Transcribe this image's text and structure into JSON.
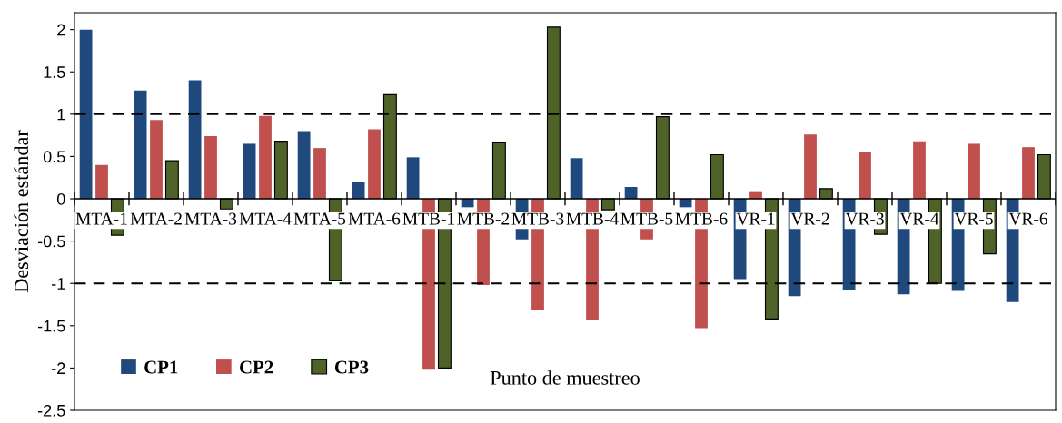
{
  "chart_data": {
    "type": "bar",
    "xlabel": "Punto de muestreo",
    "ylabel": "Desviación estándar",
    "categories": [
      "MTA-1",
      "MTA-2",
      "MTA-3",
      "MTA-4",
      "MTA-5",
      "MTA-6",
      "MTB-1",
      "MTB-2",
      "MTB-3",
      "MTB-4",
      "MTB-5",
      "MTB-6",
      "VR-1",
      "VR-2",
      "VR-3",
      "VR-4",
      "VR-5",
      "VR-6"
    ],
    "series": [
      {
        "name": "CP1",
        "color": "#1f497d",
        "values": [
          2.0,
          1.28,
          1.4,
          0.65,
          0.8,
          0.2,
          0.49,
          -0.1,
          -0.48,
          0.48,
          0.14,
          -0.1,
          -0.95,
          -1.15,
          -1.08,
          -1.13,
          -1.09,
          -1.22
        ]
      },
      {
        "name": "CP2",
        "color": "#c0504d",
        "values": [
          0.4,
          0.93,
          0.74,
          0.98,
          0.6,
          0.82,
          -2.02,
          -1.02,
          -1.32,
          -1.43,
          -0.48,
          -1.53,
          0.09,
          0.76,
          0.55,
          0.68,
          0.65,
          0.61
        ]
      },
      {
        "name": "CP3",
        "color": "#4f6228",
        "values": [
          -0.43,
          0.45,
          -0.12,
          0.68,
          -0.97,
          1.23,
          -2.0,
          0.67,
          2.03,
          -0.13,
          0.97,
          0.52,
          -1.42,
          0.12,
          -0.42,
          -1.0,
          -0.65,
          0.52
        ]
      }
    ],
    "ylim": [
      -2.5,
      2.2
    ],
    "yticks": [
      {
        "value": -2.5,
        "label": "-2.5"
      },
      {
        "value": -2,
        "label": "-2"
      },
      {
        "value": -1.5,
        "label": "-1.5"
      },
      {
        "value": -1,
        "label": "-1"
      },
      {
        "value": -0.5,
        "label": "-0.5"
      },
      0,
      0.5,
      1,
      1.5,
      2
    ],
    "ref_lines": [
      {
        "axis": "y",
        "value": 1,
        "color": "#000000",
        "line_style": "dashed"
      },
      {
        "axis": "y",
        "value": -1,
        "color": "#000000",
        "line_style": "dashed"
      }
    ],
    "legend": "bottom left",
    "grid": false
  }
}
